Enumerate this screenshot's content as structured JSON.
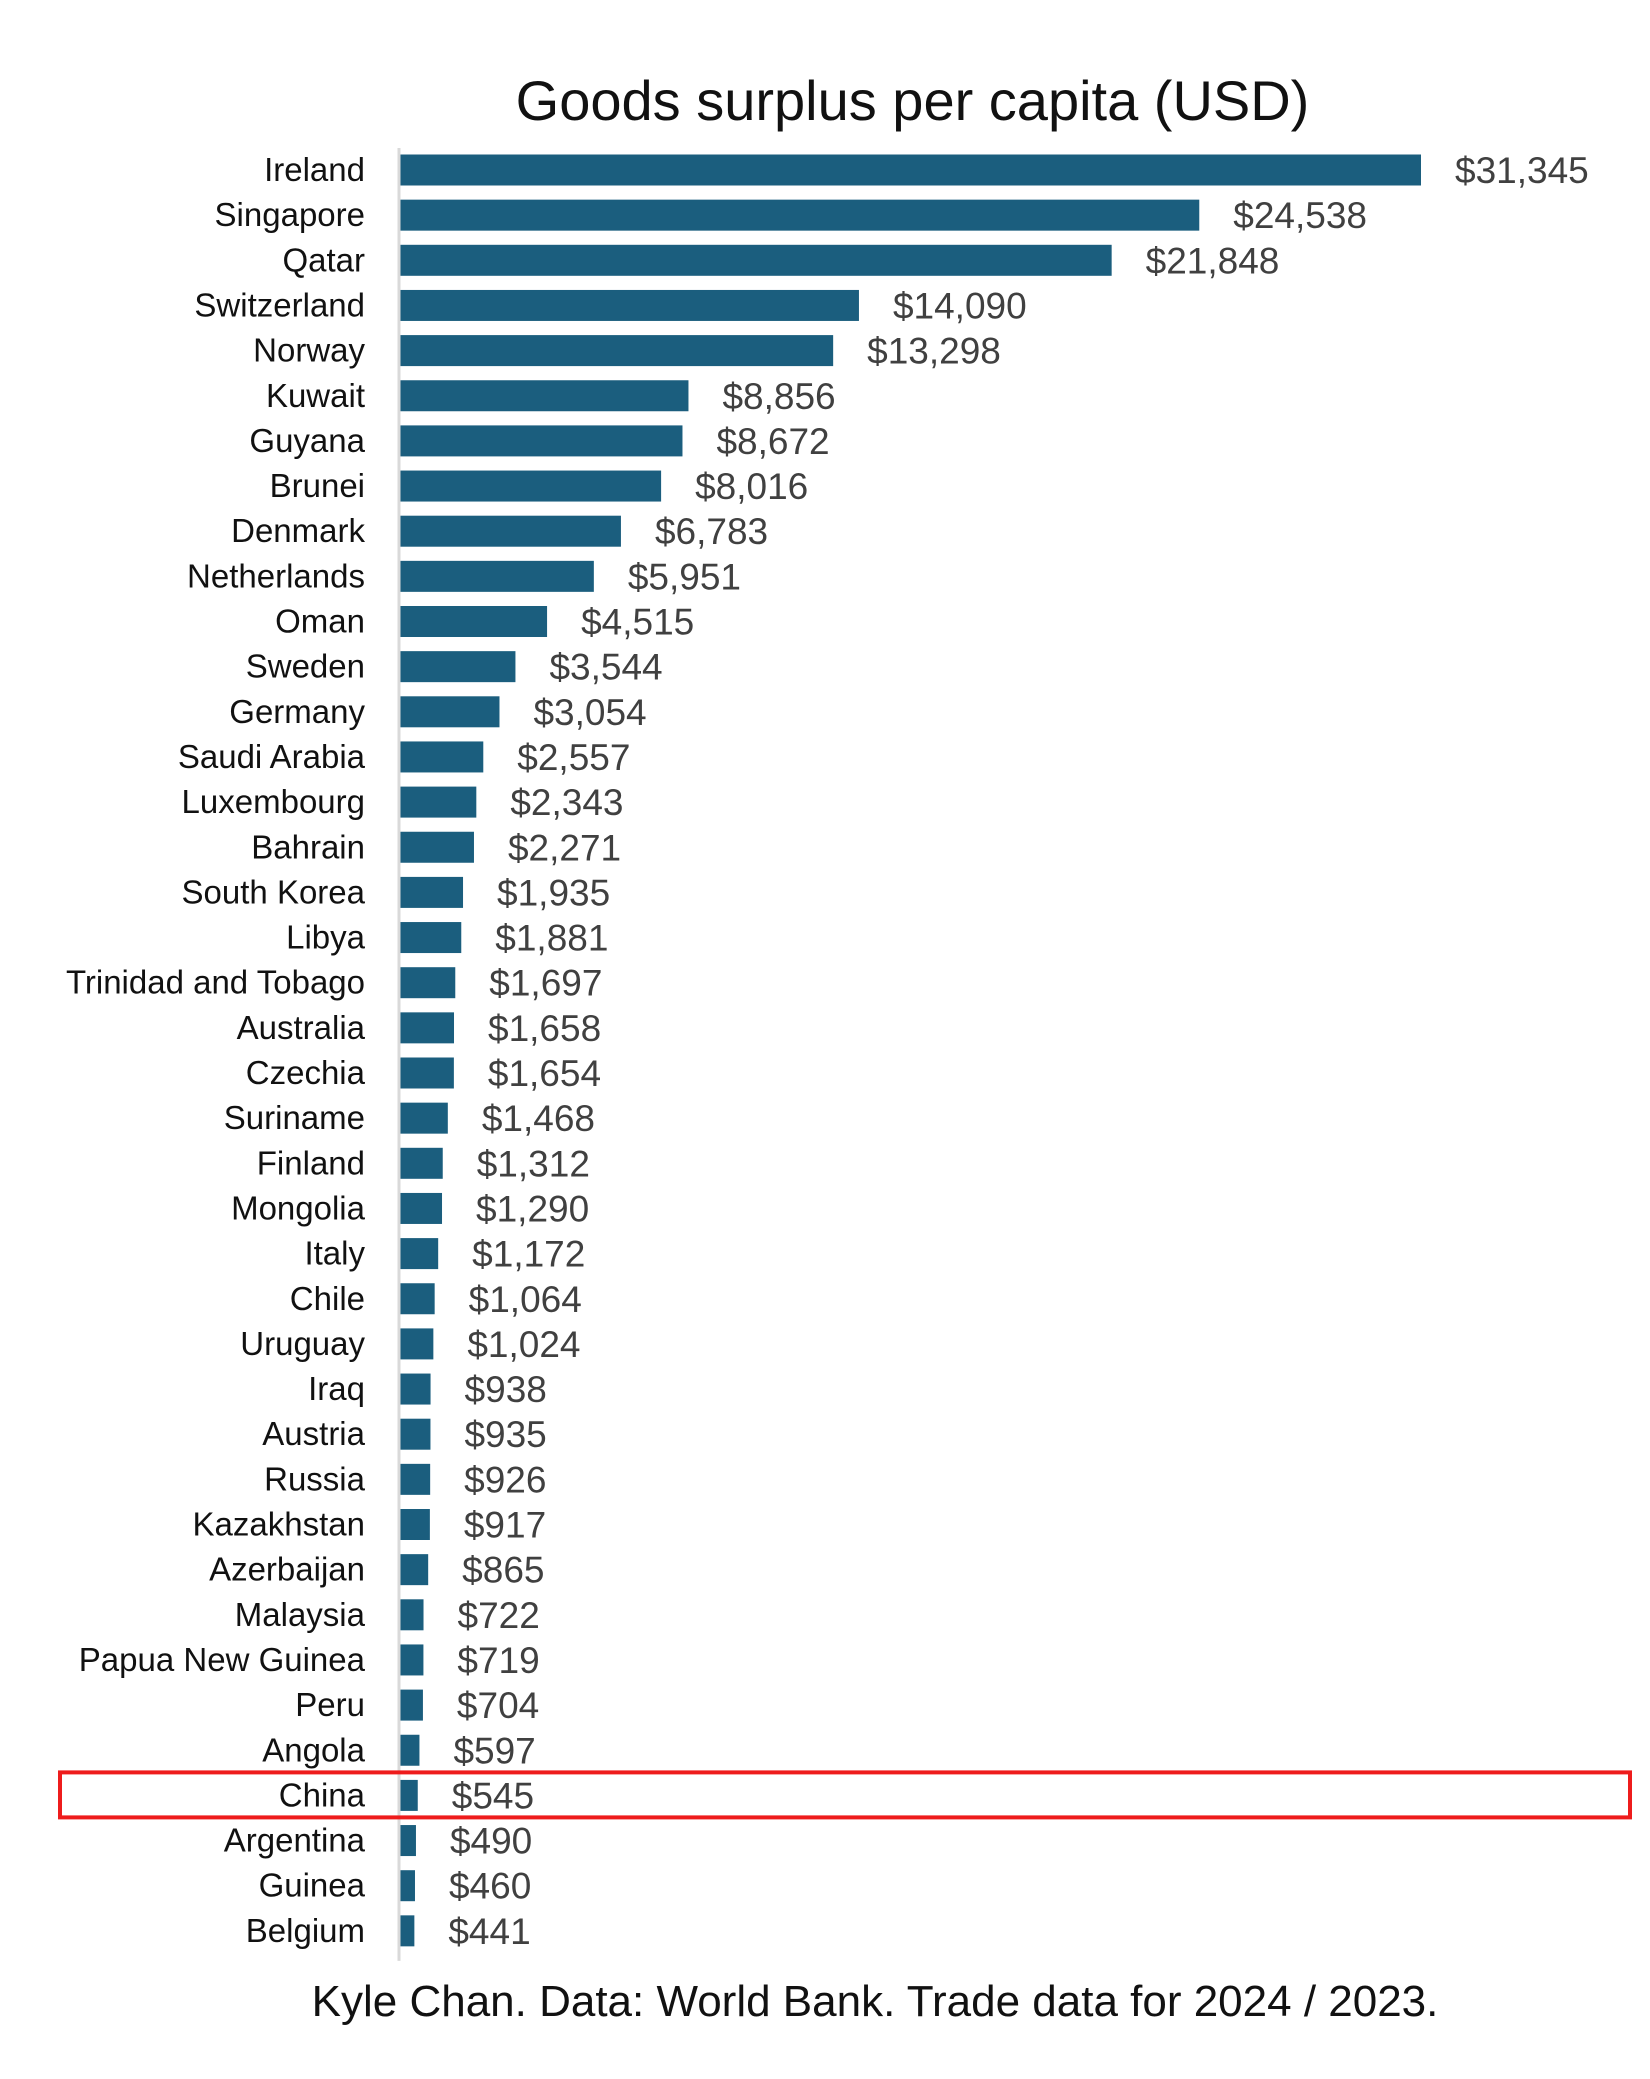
{
  "chart_data": {
    "type": "bar",
    "orientation": "horizontal",
    "title": "Goods surplus per capita (USD)",
    "footnote": "Kyle Chan. Data: World Bank. Trade data for 2024 / 2023.",
    "bar_color": "#1b5e7e",
    "highlight_color": "#ee1c1c",
    "highlight_category": "China",
    "value_prefix": "$",
    "categories": [
      "Ireland",
      "Singapore",
      "Qatar",
      "Switzerland",
      "Norway",
      "Kuwait",
      "Guyana",
      "Brunei",
      "Denmark",
      "Netherlands",
      "Oman",
      "Sweden",
      "Germany",
      "Saudi Arabia",
      "Luxembourg",
      "Bahrain",
      "South Korea",
      "Libya",
      "Trinidad and Tobago",
      "Australia",
      "Czechia",
      "Suriname",
      "Finland",
      "Mongolia",
      "Italy",
      "Chile",
      "Uruguay",
      "Iraq",
      "Austria",
      "Russia",
      "Kazakhstan",
      "Azerbaijan",
      "Malaysia",
      "Papua New Guinea",
      "Peru",
      "Angola",
      "China",
      "Argentina",
      "Guinea",
      "Belgium"
    ],
    "values": [
      31345,
      24538,
      21848,
      14090,
      13298,
      8856,
      8672,
      8016,
      6783,
      5951,
      4515,
      3544,
      3054,
      2557,
      2343,
      2271,
      1935,
      1881,
      1697,
      1658,
      1654,
      1468,
      1312,
      1290,
      1172,
      1064,
      1024,
      938,
      935,
      926,
      917,
      865,
      722,
      719,
      704,
      597,
      545,
      490,
      460,
      441
    ],
    "value_labels": [
      "$31,345",
      "$24,538",
      "$21,848",
      "$14,090",
      "$13,298",
      "$8,856",
      "$8,672",
      "$8,016",
      "$6,783",
      "$5,951",
      "$4,515",
      "$3,544",
      "$3,054",
      "$2,557",
      "$2,343",
      "$2,271",
      "$1,935",
      "$1,881",
      "$1,697",
      "$1,658",
      "$1,654",
      "$1,468",
      "$1,312",
      "$1,290",
      "$1,172",
      "$1,064",
      "$1,024",
      "$938",
      "$935",
      "$926",
      "$917",
      "$865",
      "$722",
      "$719",
      "$704",
      "$597",
      "$545",
      "$490",
      "$460",
      "$441"
    ],
    "xlim": [
      0,
      31345
    ],
    "grid": false,
    "legend": "none"
  }
}
